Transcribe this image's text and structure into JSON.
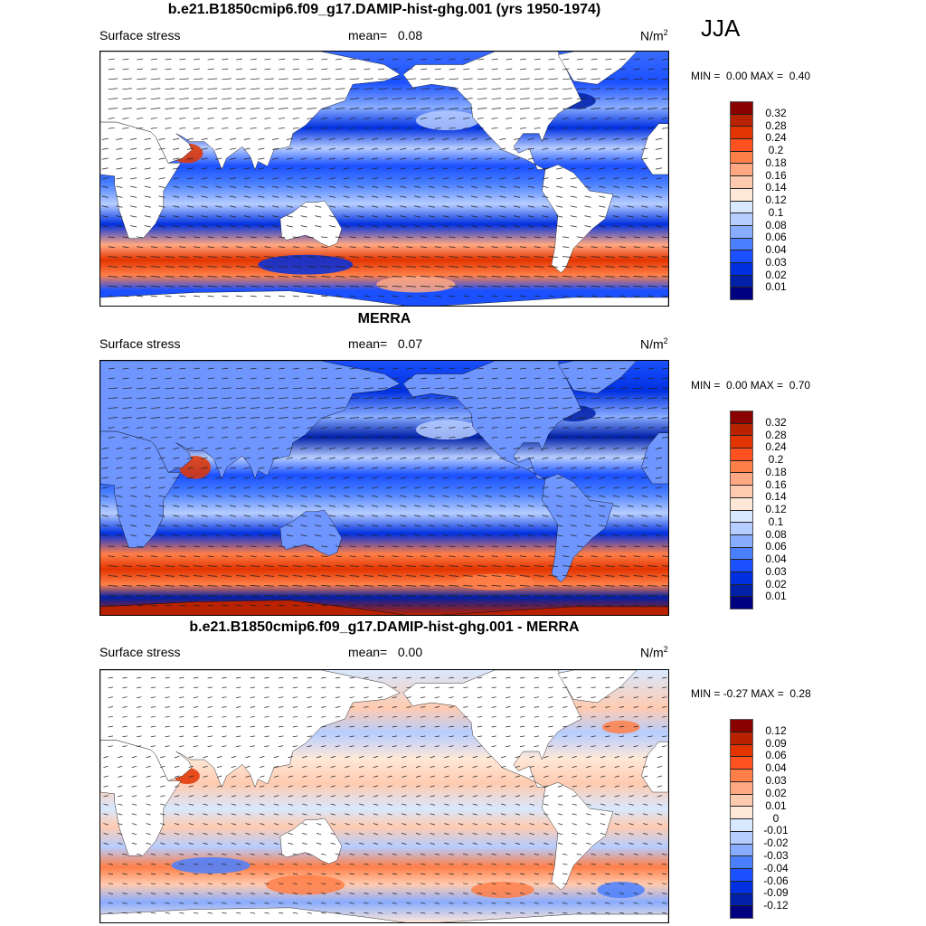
{
  "season": "JJA",
  "panels": [
    {
      "title": "b.e21.B1850cmip6.f09_g17.DAMIP-hist-ghg.001 (yrs 1950-1974)",
      "variable": "Surface stress",
      "mean_label": "mean=",
      "mean": "0.08",
      "units": "N/m",
      "units_exp": "2",
      "min_label": "MIN =",
      "min": "0.00",
      "max_label": "MAX =",
      "max": "0.40"
    },
    {
      "title": "MERRA",
      "variable": "Surface stress",
      "mean_label": "mean=",
      "mean": "0.07",
      "units": "N/m",
      "units_exp": "2",
      "min_label": "MIN =",
      "min": "0.00",
      "max_label": "MAX =",
      "max": "0.70"
    },
    {
      "title": "b.e21.B1850cmip6.f09_g17.DAMIP-hist-ghg.001 - MERRA",
      "variable": "Surface stress",
      "mean_label": "mean=",
      "mean": "0.00",
      "units": "N/m",
      "units_exp": "2",
      "min_label": "MIN =",
      "min": "-0.27",
      "max_label": "MAX =",
      "max": "0.28"
    }
  ],
  "colorbars": {
    "colors": [
      "#8b0000",
      "#b82200",
      "#e23400",
      "#ff5220",
      "#ff7f48",
      "#ffa882",
      "#ffcbb0",
      "#ffe8d8",
      "#d8e8ff",
      "#b6cdff",
      "#88acff",
      "#4a80ff",
      "#1a50ff",
      "#0030e0",
      "#0020a8",
      "#000080"
    ],
    "field_labels": [
      "0.32",
      "0.28",
      "0.24",
      "0.2",
      "0.18",
      "0.16",
      "0.14",
      "0.12",
      "0.1",
      "0.08",
      "0.06",
      "0.04",
      "0.03",
      "0.02",
      "0.01"
    ],
    "diff_labels": [
      "0.12",
      "0.09",
      "0.06",
      "0.04",
      "0.03",
      "0.02",
      "0.01",
      "0",
      "-0.01",
      "-0.02",
      "-0.03",
      "-0.04",
      "-0.06",
      "-0.09",
      "-0.12"
    ]
  }
}
